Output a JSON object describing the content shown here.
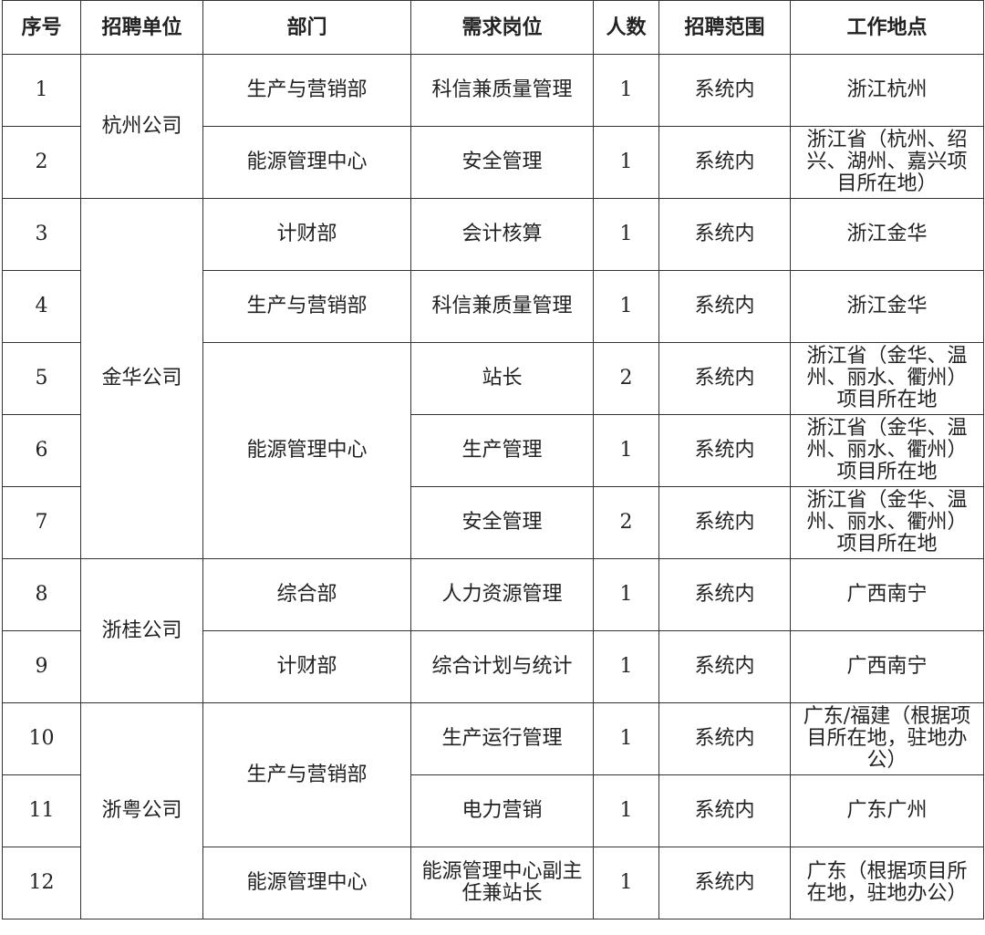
{
  "headers": [
    "序号",
    "招聘单位",
    "部门",
    "需求岗位",
    "人数",
    "招聘范围",
    "工作地点"
  ],
  "rows": [
    {
      "no": "1",
      "unit": "杭州公司",
      "dept": "生产与营销部",
      "position": "科信兼质量管理",
      "count": "1",
      "scope": "系统内",
      "location": "浙江杭州"
    },
    {
      "no": "2",
      "unit": "杭州公司",
      "dept": "能源管理中心",
      "position": "安全管理",
      "count": "1",
      "scope": "系统内",
      "location": "浙江省（杭州、绍兴、湖州、嘉兴项目所在地）"
    },
    {
      "no": "3",
      "unit": "金华公司",
      "dept": "计财部",
      "position": "会计核算",
      "count": "1",
      "scope": "系统内",
      "location": "浙江金华"
    },
    {
      "no": "4",
      "unit": "金华公司",
      "dept": "生产与营销部",
      "position": "科信兼质量管理",
      "count": "1",
      "scope": "系统内",
      "location": "浙江金华"
    },
    {
      "no": "5",
      "unit": "金华公司",
      "dept": "能源管理中心",
      "position": "站长",
      "count": "2",
      "scope": "系统内",
      "location": "浙江省（金华、温州、丽水、衢州）项目所在地"
    },
    {
      "no": "6",
      "unit": "金华公司",
      "dept": "能源管理中心",
      "position": "生产管理",
      "count": "1",
      "scope": "系统内",
      "location": "浙江省（金华、温州、丽水、衢州）项目所在地"
    },
    {
      "no": "7",
      "unit": "金华公司",
      "dept": "能源管理中心",
      "position": "安全管理",
      "count": "2",
      "scope": "系统内",
      "location": "浙江省（金华、温州、丽水、衢州）项目所在地"
    },
    {
      "no": "8",
      "unit": "浙桂公司",
      "dept": "综合部",
      "position": "人力资源管理",
      "count": "1",
      "scope": "系统内",
      "location": "广西南宁"
    },
    {
      "no": "9",
      "unit": "浙桂公司",
      "dept": "计财部",
      "position": "综合计划与统计",
      "count": "1",
      "scope": "系统内",
      "location": "广西南宁"
    },
    {
      "no": "10",
      "unit": "浙粤公司",
      "dept": "生产与营销部",
      "position": "生产运行管理",
      "count": "1",
      "scope": "系统内",
      "location": "广东/福建（根据项目所在地，驻地办公）"
    },
    {
      "no": "11",
      "unit": "浙粤公司",
      "dept": "生产与营销部",
      "position": "电力营销",
      "count": "1",
      "scope": "系统内",
      "location": "广东广州"
    },
    {
      "no": "12",
      "unit": "浙粤公司",
      "dept": "能源管理中心",
      "position": "能源管理中心副主任兼站长",
      "count": "1",
      "scope": "系统内",
      "location": "广东（根据项目所在地，驻地办公）"
    }
  ]
}
